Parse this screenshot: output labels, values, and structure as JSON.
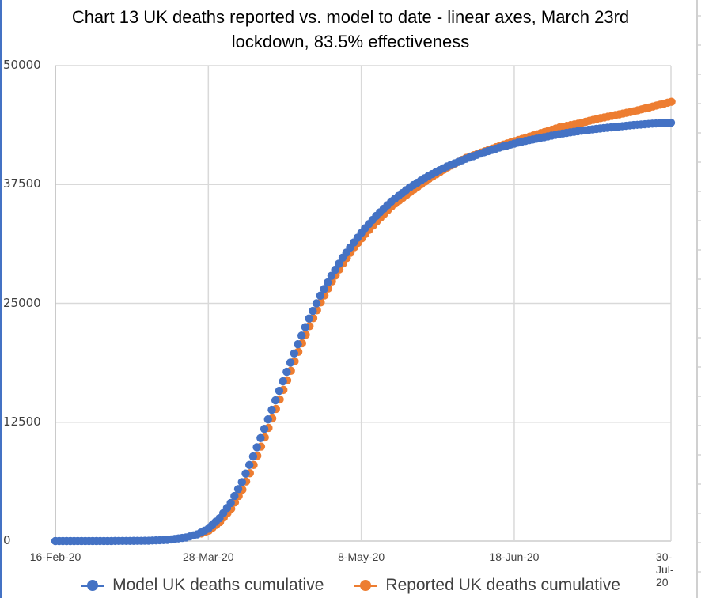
{
  "chart_data": {
    "type": "scatter",
    "title": "Chart 13 UK deaths reported vs. model to date -  linear axes, March 23rd lockdown, 83.5% effectiveness",
    "title_lines": [
      "Chart 13 UK deaths reported vs. model to date -  linear axes, March 23rd",
      "lockdown, 83.5% effectiveness"
    ],
    "xlabel": "",
    "ylabel": "",
    "x_ticks": [
      "16-Feb-20",
      "28-Mar-20",
      "8-May-20",
      "18-Jun-20",
      "30-Jul-20"
    ],
    "x_tick_days": [
      0,
      41,
      82,
      123,
      165
    ],
    "y_ticks": [
      "0",
      "12500",
      "25000",
      "37500",
      "50000"
    ],
    "ylim": [
      0,
      50000
    ],
    "xlim_days": [
      0,
      165
    ],
    "grid": true,
    "legend_position": "bottom",
    "series": [
      {
        "name": "Model UK deaths cumulative",
        "color": "#4472c4",
        "day_range": [
          0,
          165
        ],
        "points": [
          [
            0,
            0
          ],
          [
            10,
            2
          ],
          [
            20,
            15
          ],
          [
            25,
            40
          ],
          [
            30,
            120
          ],
          [
            35,
            380
          ],
          [
            38,
            700
          ],
          [
            41,
            1300
          ],
          [
            44,
            2400
          ],
          [
            47,
            4000
          ],
          [
            50,
            6200
          ],
          [
            53,
            8900
          ],
          [
            56,
            11800
          ],
          [
            59,
            14800
          ],
          [
            62,
            17800
          ],
          [
            65,
            20700
          ],
          [
            68,
            23400
          ],
          [
            71,
            25800
          ],
          [
            74,
            27900
          ],
          [
            77,
            29800
          ],
          [
            80,
            31400
          ],
          [
            83,
            32900
          ],
          [
            86,
            34200
          ],
          [
            90,
            35700
          ],
          [
            95,
            37200
          ],
          [
            100,
            38400
          ],
          [
            105,
            39400
          ],
          [
            110,
            40200
          ],
          [
            115,
            40900
          ],
          [
            120,
            41500
          ],
          [
            125,
            42000
          ],
          [
            130,
            42400
          ],
          [
            135,
            42800
          ],
          [
            140,
            43100
          ],
          [
            145,
            43350
          ],
          [
            150,
            43550
          ],
          [
            155,
            43750
          ],
          [
            160,
            43900
          ],
          [
            165,
            44000
          ]
        ]
      },
      {
        "name": "Reported UK deaths cumulative",
        "color": "#ed7d31",
        "day_range": [
          39,
          165
        ],
        "points": [
          [
            39,
            800
          ],
          [
            41,
            1100
          ],
          [
            44,
            2000
          ],
          [
            47,
            3400
          ],
          [
            50,
            5400
          ],
          [
            53,
            8000
          ],
          [
            56,
            10900
          ],
          [
            59,
            13900
          ],
          [
            62,
            16900
          ],
          [
            65,
            19900
          ],
          [
            68,
            22600
          ],
          [
            71,
            25100
          ],
          [
            74,
            27300
          ],
          [
            77,
            29200
          ],
          [
            80,
            30900
          ],
          [
            83,
            32300
          ],
          [
            86,
            33600
          ],
          [
            90,
            35200
          ],
          [
            95,
            36700
          ],
          [
            100,
            38100
          ],
          [
            105,
            39300
          ],
          [
            110,
            40300
          ],
          [
            115,
            41000
          ],
          [
            120,
            41700
          ],
          [
            125,
            42300
          ],
          [
            130,
            42900
          ],
          [
            135,
            43500
          ],
          [
            140,
            43900
          ],
          [
            145,
            44400
          ],
          [
            150,
            44800
          ],
          [
            155,
            45200
          ],
          [
            160,
            45700
          ],
          [
            165,
            46200
          ]
        ]
      }
    ]
  },
  "legend": {
    "model_label": "Model UK deaths cumulative",
    "reported_label": "Reported UK deaths cumulative"
  }
}
